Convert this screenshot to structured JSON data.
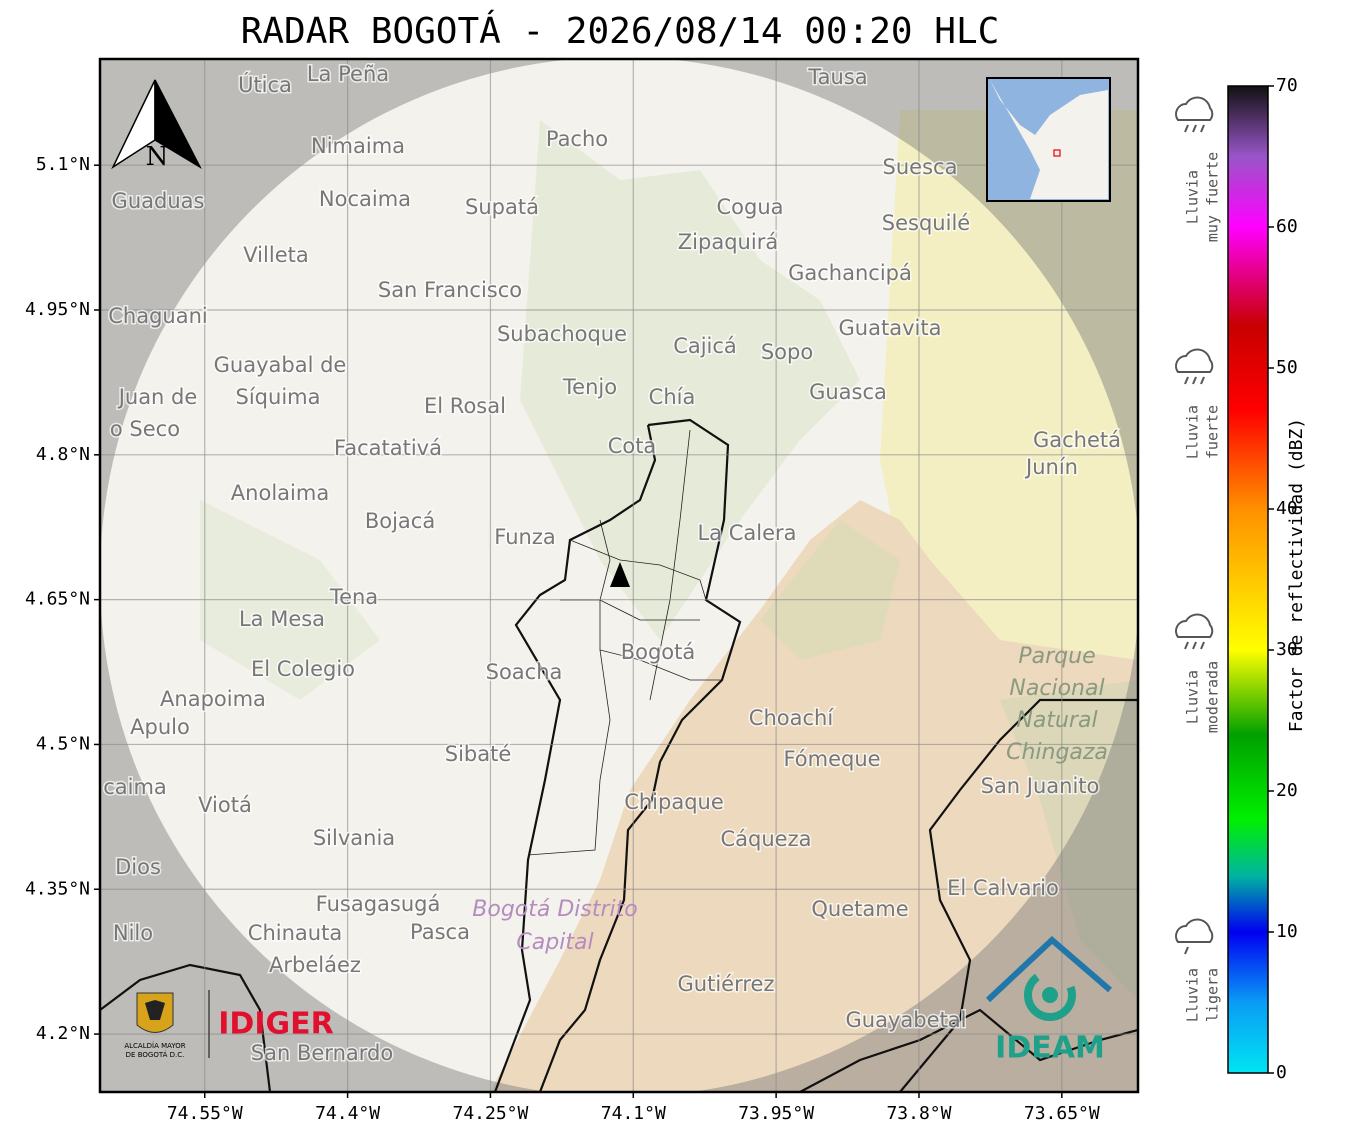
{
  "title": "RADAR BOGOTÁ - 2026/08/14 00:20 HLC",
  "map": {
    "xlim": [
      -74.66,
      -73.57
    ],
    "ylim": [
      4.14,
      5.21
    ],
    "xticks": [
      {
        "value": -74.55,
        "label": "74.55°W"
      },
      {
        "value": -74.4,
        "label": "74.4°W"
      },
      {
        "value": -74.25,
        "label": "74.25°W"
      },
      {
        "value": -74.1,
        "label": "74.1°W"
      },
      {
        "value": -73.95,
        "label": "73.95°W"
      },
      {
        "value": -73.8,
        "label": "73.8°W"
      },
      {
        "value": -73.65,
        "label": "73.65°W"
      }
    ],
    "yticks": [
      {
        "value": 5.1,
        "label": "5.1°N"
      },
      {
        "value": 4.95,
        "label": "4.95°N"
      },
      {
        "value": 4.8,
        "label": "4.8°N"
      },
      {
        "value": 4.65,
        "label": "4.65°N"
      },
      {
        "value": 4.5,
        "label": "4.5°N"
      },
      {
        "value": 4.35,
        "label": "4.35°N"
      },
      {
        "value": 4.2,
        "label": "4.2°N"
      }
    ],
    "grid": true,
    "north": "N",
    "places": [
      "La Peña",
      "Útica",
      "Tausa",
      "Pacho",
      "Nimaima",
      "Guaduas",
      "Nocaima",
      "Supatá",
      "Cogua",
      "Suesca",
      "Sesquilé",
      "Zipaquirá",
      "Villeta",
      "Gachancipá",
      "San Francisco",
      "Chaguani",
      "Guatavita",
      "Subachoque",
      "Cajicá",
      "Sopo",
      "Guayabal de",
      "Síquima",
      "Tenjo",
      "Chía",
      "Guasca",
      "Juan de",
      "o Seco",
      "El Rosal",
      "Facatativá",
      "Cota",
      "Gachetá",
      "Junín",
      "Anolaima",
      "Bojacá",
      "Funza",
      "La Calera",
      "Tena",
      "La Mesa",
      "Bogotá",
      "El Colegio",
      "Soacha",
      "Anapoima",
      "Apulo",
      "Choachí",
      "Sibaté",
      "Fómeque",
      "San Juanito",
      "caima",
      "Viotá",
      "Chipaque",
      "Silvania",
      "Cáqueza",
      "Dios",
      "El Calvario",
      "Fusagasugá",
      "Quetame",
      "Nilo",
      "Chinauta",
      "Pasca",
      "Arbeláez",
      "Gutiérrez",
      "Guayabetal",
      "San Bernardo"
    ],
    "areas": [
      "Bogotá Distrito",
      "Capital",
      "Parque",
      "Nacional",
      "Natural",
      "Chingaza"
    ]
  },
  "colorbar": {
    "label": "Factor de reflectividad (dBZ)",
    "lim": [
      0,
      70
    ],
    "ticks": [
      0,
      10,
      20,
      30,
      40,
      50,
      60,
      70
    ],
    "colorscale": [
      [
        0,
        "#00e5f2"
      ],
      [
        5,
        "#0a9cf5"
      ],
      [
        10,
        "#0000f0"
      ],
      [
        14,
        "#00b4a0"
      ],
      [
        18,
        "#00f000"
      ],
      [
        24,
        "#00a000"
      ],
      [
        30,
        "#ffff00"
      ],
      [
        40,
        "#ff9000"
      ],
      [
        47,
        "#ff0000"
      ],
      [
        53,
        "#c80000"
      ],
      [
        60,
        "#ff00ff"
      ],
      [
        65,
        "#9955c8"
      ],
      [
        70,
        "#111111"
      ]
    ],
    "categories": [
      [
        "Lluvia",
        "muy fuerte"
      ],
      [
        "Lluvia",
        "fuerte"
      ],
      [
        "Lluvia",
        "moderada"
      ],
      [
        "Lluvia",
        "ligera"
      ]
    ]
  },
  "logos": {
    "idiger": "IDIGER",
    "ideam": "IDEAM",
    "alcaldia": [
      "ALCALDÍA MAYOR",
      "DE BOGOTÁ D.C."
    ]
  }
}
